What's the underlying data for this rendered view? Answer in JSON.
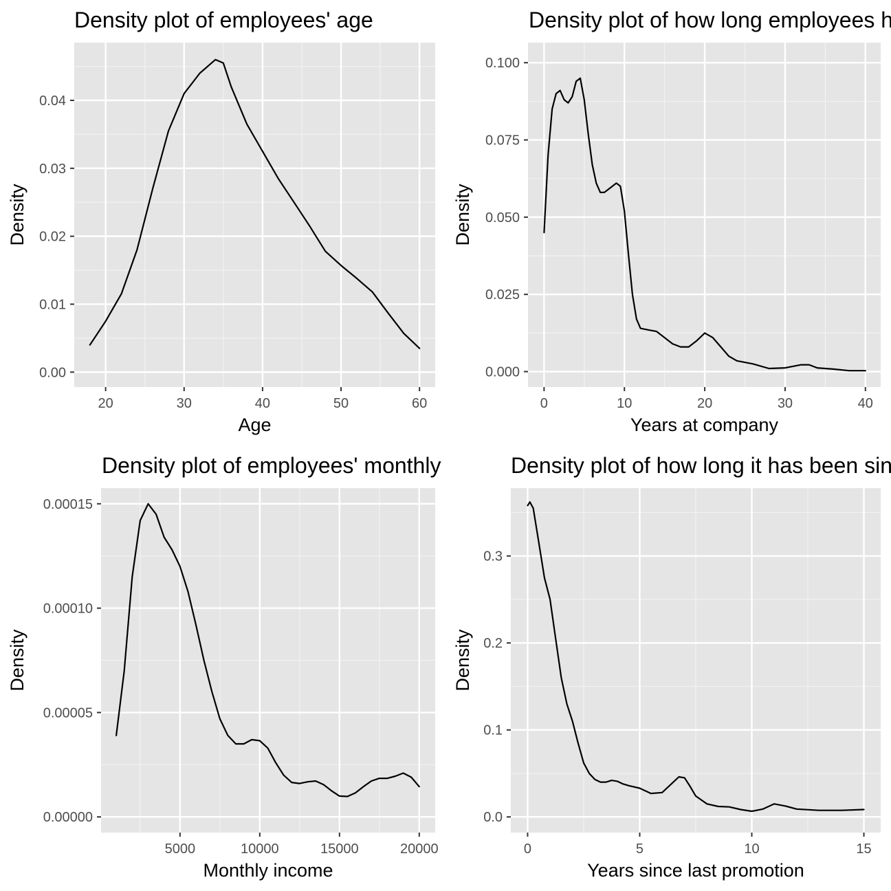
{
  "chart_data": [
    {
      "type": "line",
      "title": "Density plot of employees' age",
      "xlabel": "Age",
      "ylabel": "Density",
      "xlim": [
        16,
        62
      ],
      "ylim": [
        -0.0022,
        0.0485
      ],
      "x_ticks": [
        20,
        30,
        40,
        50,
        60
      ],
      "y_ticks": [
        0,
        0.01,
        0.02,
        0.03,
        0.04
      ],
      "x_tick_labels": [
        "20",
        "30",
        "40",
        "50",
        "60"
      ],
      "y_tick_labels": [
        "0.00",
        "0.01",
        "0.02",
        "0.03",
        "0.04"
      ],
      "x": [
        18,
        20,
        22,
        24,
        26,
        28,
        30,
        32,
        34,
        35,
        36,
        38,
        40,
        42,
        44,
        46,
        48,
        50,
        52,
        54,
        56,
        58,
        60
      ],
      "y": [
        0.004,
        0.0075,
        0.0115,
        0.018,
        0.027,
        0.0355,
        0.041,
        0.044,
        0.046,
        0.0455,
        0.042,
        0.0365,
        0.0325,
        0.0285,
        0.025,
        0.0215,
        0.0178,
        0.0157,
        0.0138,
        0.0118,
        0.0087,
        0.0057,
        0.0035
      ]
    },
    {
      "type": "line",
      "title": "Density plot of how long employees have been at the company",
      "xlabel": "Years at company",
      "ylabel": "Density",
      "xlim": [
        -2,
        41.9
      ],
      "ylim": [
        -0.005,
        0.1065
      ],
      "x_ticks": [
        0,
        10,
        20,
        30,
        40
      ],
      "y_ticks": [
        0,
        0.025,
        0.05,
        0.075,
        0.1
      ],
      "x_tick_labels": [
        "0",
        "10",
        "20",
        "30",
        "40"
      ],
      "y_tick_labels": [
        "0.000",
        "0.025",
        "0.050",
        "0.075",
        "0.100"
      ],
      "x": [
        0,
        0.5,
        1,
        1.5,
        2,
        2.5,
        3,
        3.5,
        4,
        4.5,
        5,
        5.5,
        6,
        6.5,
        7,
        7.5,
        8,
        8.5,
        9,
        9.5,
        10,
        10.5,
        11,
        11.5,
        12,
        13,
        14,
        15,
        16,
        17,
        18,
        19,
        20,
        21,
        22,
        23,
        24,
        26,
        28,
        30,
        32,
        33,
        34,
        36,
        38,
        40
      ],
      "y": [
        0.045,
        0.07,
        0.085,
        0.09,
        0.091,
        0.088,
        0.087,
        0.089,
        0.094,
        0.095,
        0.088,
        0.077,
        0.067,
        0.061,
        0.058,
        0.058,
        0.059,
        0.06,
        0.061,
        0.06,
        0.052,
        0.038,
        0.025,
        0.017,
        0.014,
        0.0135,
        0.013,
        0.011,
        0.009,
        0.008,
        0.008,
        0.01,
        0.0125,
        0.011,
        0.008,
        0.005,
        0.0035,
        0.0025,
        0.001,
        0.0012,
        0.0022,
        0.0022,
        0.0012,
        0.0008,
        0.0003,
        0.0003
      ]
    },
    {
      "type": "line",
      "title": "Density plot of employees' monthly income",
      "xlabel": "Monthly income",
      "ylabel": "Density",
      "xlim": [
        49,
        21000
      ],
      "ylim": [
        -7.5e-06,
        0.0001575
      ],
      "x_ticks": [
        5000,
        10000,
        15000,
        20000
      ],
      "y_ticks": [
        0,
        5e-05,
        0.0001,
        0.00015
      ],
      "x_tick_labels": [
        "5000",
        "10000",
        "15000",
        "20000"
      ],
      "y_tick_labels": [
        "0.00000",
        "0.00005",
        "0.00010",
        "0.00015"
      ],
      "x": [
        1000,
        1500,
        2000,
        2500,
        3000,
        3500,
        4000,
        4500,
        5000,
        5500,
        6000,
        6500,
        7000,
        7500,
        8000,
        8500,
        9000,
        9500,
        10000,
        10500,
        11000,
        11500,
        12000,
        12500,
        13000,
        13500,
        14000,
        14500,
        15000,
        15500,
        16000,
        16500,
        17000,
        17500,
        18000,
        18500,
        19000,
        19500,
        20000
      ],
      "y": [
        3.9e-05,
        7e-05,
        0.000115,
        0.000142,
        0.00015,
        0.000145,
        0.000134,
        0.000128,
        0.00012,
        0.000108,
        9.2e-05,
        7.5e-05,
        6e-05,
        4.7e-05,
        3.9e-05,
        3.5e-05,
        3.5e-05,
        3.7e-05,
        3.65e-05,
        3.3e-05,
        2.6e-05,
        2e-05,
        1.65e-05,
        1.6e-05,
        1.68e-05,
        1.72e-05,
        1.55e-05,
        1.25e-05,
        1e-05,
        9.8e-06,
        1.15e-05,
        1.45e-05,
        1.72e-05,
        1.85e-05,
        1.85e-05,
        1.95e-05,
        2.1e-05,
        1.9e-05,
        1.45e-05
      ]
    },
    {
      "type": "line",
      "title": "Density plot of how long it has been since the last promotion",
      "xlabel": "Years since last promotion",
      "ylabel": "Density",
      "xlim": [
        -0.75,
        15.75
      ],
      "ylim": [
        -0.018,
        0.378
      ],
      "x_ticks": [
        0,
        5,
        10,
        15
      ],
      "y_ticks": [
        0,
        0.1,
        0.2,
        0.3
      ],
      "x_tick_labels": [
        "0",
        "5",
        "10",
        "15"
      ],
      "y_tick_labels": [
        "0.0",
        "0.1",
        "0.2",
        "0.3"
      ],
      "x": [
        0,
        0.1,
        0.25,
        0.5,
        0.75,
        1,
        1.25,
        1.5,
        1.75,
        2,
        2.25,
        2.5,
        2.75,
        3,
        3.25,
        3.5,
        3.75,
        4,
        4.25,
        4.5,
        5,
        5.5,
        6,
        6.5,
        6.75,
        7,
        7.25,
        7.5,
        8,
        8.5,
        9,
        9.5,
        10,
        10.5,
        11,
        11.5,
        12,
        13,
        14,
        15
      ],
      "y": [
        0.358,
        0.362,
        0.355,
        0.315,
        0.275,
        0.25,
        0.205,
        0.16,
        0.13,
        0.11,
        0.085,
        0.062,
        0.05,
        0.043,
        0.04,
        0.04,
        0.042,
        0.041,
        0.038,
        0.036,
        0.033,
        0.027,
        0.028,
        0.04,
        0.046,
        0.045,
        0.035,
        0.024,
        0.015,
        0.012,
        0.0115,
        0.0085,
        0.0065,
        0.009,
        0.015,
        0.0125,
        0.009,
        0.0075,
        0.0075,
        0.0085
      ]
    }
  ]
}
